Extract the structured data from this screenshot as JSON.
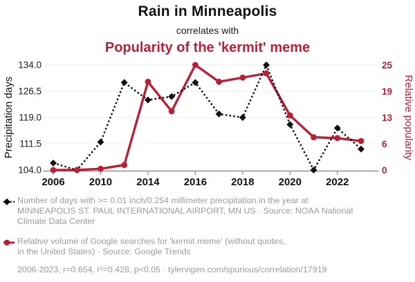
{
  "theme": {
    "red": "#bb1f36",
    "black": "#111111",
    "gridline": "#ececec",
    "axis_gray": "#888888",
    "legend_gray": "#9b9b9b"
  },
  "header": {
    "title": "Rain in Minneapolis",
    "subtitle": "correlates with",
    "correlation_title": "Popularity of the 'kermit' meme"
  },
  "chart_data": {
    "type": "line",
    "x": [
      2006,
      2008,
      2010,
      2012,
      2014,
      2015,
      2016,
      2017,
      2018,
      2019,
      2020,
      2021,
      2022,
      2023
    ],
    "x_tick_indices": [
      0,
      2,
      4,
      6,
      8,
      10,
      12
    ],
    "x_tick_labels": [
      "2006",
      "2010",
      "2014",
      "2016",
      "2018",
      "2020",
      "2022"
    ],
    "left_axis": {
      "label": "Precipitation days",
      "min": 104.0,
      "max": 134.0,
      "tick_labels_top_to_bottom": [
        "134.0",
        "126.5",
        "119.0",
        "111.5",
        "104.0"
      ]
    },
    "right_axis": {
      "label": "Relative popularity",
      "min": 0,
      "max": 25,
      "tick_labels_top_to_bottom": [
        "25",
        "19",
        "13",
        "6",
        "0"
      ]
    },
    "grid": "horizontal",
    "series": [
      {
        "name": "precipitation-days",
        "axis": "left",
        "color": "#111111",
        "line_style": "dotted",
        "marker": "diamond",
        "values": [
          106,
          104,
          112,
          129,
          124,
          125,
          129,
          120,
          119,
          134,
          117,
          104,
          116,
          110
        ]
      },
      {
        "name": "kermit-meme-popularity",
        "axis": "right",
        "color": "#bb1f36",
        "line_style": "solid",
        "marker": "circle",
        "values": [
          0,
          0,
          0.3,
          1.2,
          21,
          14,
          25,
          21,
          22,
          23,
          13,
          7.8,
          7.6,
          6.9
        ]
      }
    ]
  },
  "legend": {
    "items": [
      {
        "marker": "black-diamond-dotted",
        "lines": [
          "Number of days with >= 0.01 inch/0.254 millimeter precipitation in the year at",
          "MINNEAPOLIS ST. PAUL INTERNATIONAL AIRPORT, MN US · Source: NOAA National",
          "Climate Data Center"
        ]
      },
      {
        "marker": "red-circle-solid",
        "lines": [
          "Relative volume of Google searches for 'kermit meme' (without quotes,",
          "in the United States) · Source: Google Trends"
        ]
      }
    ]
  },
  "footer": {
    "text": "2006-2023, r=0.654, r²=0.428, p<0.05 · tylervigen.com/spurious/correlation/17919"
  }
}
